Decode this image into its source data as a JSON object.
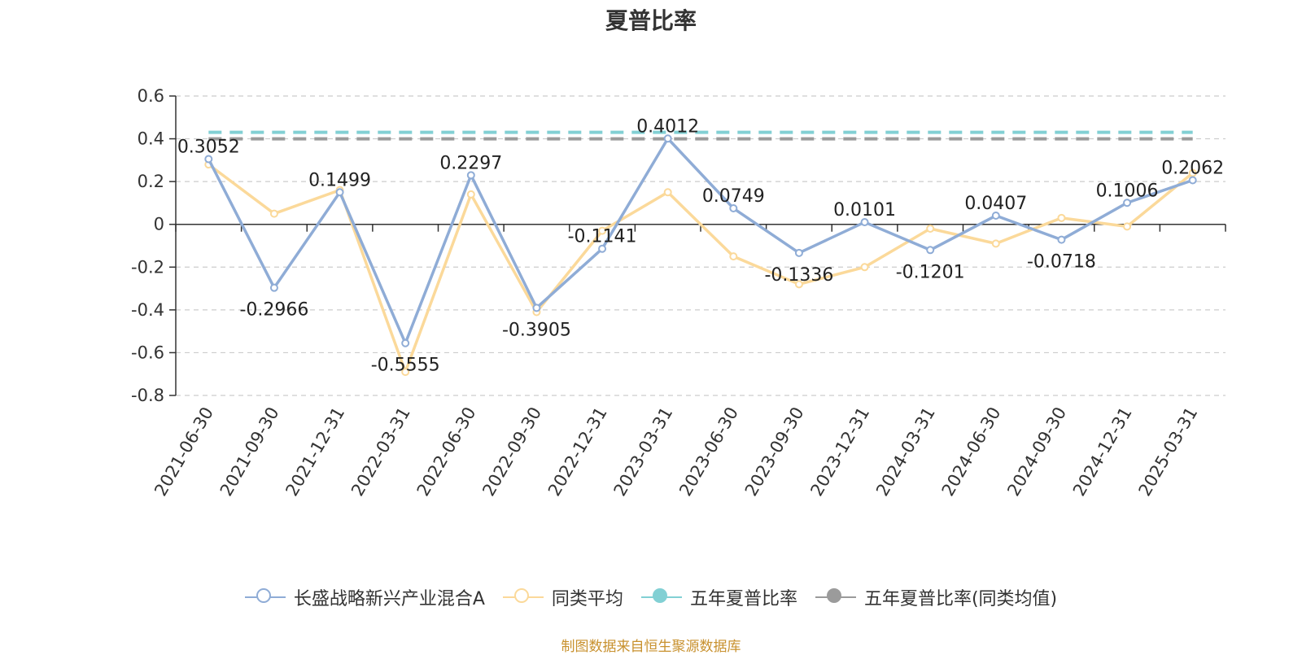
{
  "title": "夏普比率",
  "source": "制图数据来自恒生聚源数据库",
  "colors": {
    "fund": "#8facd6",
    "peer": "#fbd99a",
    "five_year": "#82d0d4",
    "five_year_peer": "#9b9b9b",
    "grid": "#cccccc",
    "axis": "#333333",
    "source": "#c8912e"
  },
  "chart_data": {
    "type": "line",
    "title": "夏普比率",
    "x": [
      "2021-06-30",
      "2021-09-30",
      "2021-12-31",
      "2022-03-31",
      "2022-06-30",
      "2022-09-30",
      "2022-12-31",
      "2023-03-31",
      "2023-06-30",
      "2023-09-30",
      "2023-12-31",
      "2024-03-31",
      "2024-06-30",
      "2024-09-30",
      "2024-12-31",
      "2025-03-31"
    ],
    "ylim": [
      -0.8,
      0.6
    ],
    "yticks": [
      "0.6",
      "0.4",
      "0.2",
      "0",
      "-0.2",
      "-0.4",
      "-0.6",
      "-0.8"
    ],
    "ytick_values": [
      0.6,
      0.4,
      0.2,
      0,
      -0.2,
      -0.4,
      -0.6,
      -0.8
    ],
    "grid": true,
    "legend_position": "bottom",
    "series": [
      {
        "name": "长盛战略新兴产业混合A",
        "style": "line",
        "values": [
          0.3052,
          -0.2966,
          0.1499,
          -0.5555,
          0.2297,
          -0.3905,
          -0.1141,
          0.4012,
          0.0749,
          -0.1336,
          0.0101,
          -0.1201,
          0.0407,
          -0.0718,
          0.1006,
          0.2062
        ],
        "labels": [
          "0.3052",
          "-0.2966",
          "0.1499",
          "-0.5555",
          "0.2297",
          "-0.3905",
          "-0.1141",
          "0.4012",
          "0.0749",
          "-0.1336",
          "0.0101",
          "-0.1201",
          "0.0407",
          "-0.0718",
          "0.1006",
          "0.2062"
        ]
      },
      {
        "name": "同类平均",
        "style": "line",
        "values": [
          0.28,
          0.05,
          0.16,
          -0.69,
          0.14,
          -0.41,
          -0.03,
          0.15,
          -0.15,
          -0.28,
          -0.2,
          -0.02,
          -0.09,
          0.03,
          -0.01,
          0.24
        ]
      },
      {
        "name": "五年夏普比率",
        "style": "dashed",
        "value": 0.43
      },
      {
        "name": "五年夏普比率(同类均值)",
        "style": "dashed",
        "value": 0.4
      }
    ]
  }
}
